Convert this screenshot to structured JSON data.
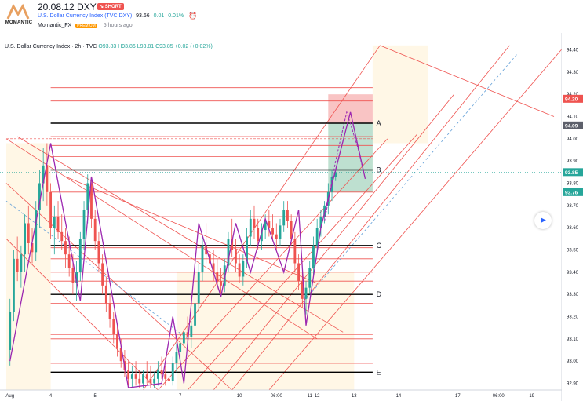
{
  "header": {
    "logo_text": "MOMANTIC",
    "idea_title": "20.08.12 DXY",
    "badge": "↘ SHORT",
    "symbol_name": "U.S. Dollar Currency Index (TVC:DXY)",
    "symbol_price": "93.66",
    "symbol_change": "0.01",
    "symbol_change_pct": "0.01%",
    "author": "Momantic_FX",
    "author_badge": "PREMIUM",
    "published": "5 hours ago",
    "alarm_icon": "alarm-clock-icon"
  },
  "legend": {
    "title": "U.S. Dollar Currency Index · 2h · TVC",
    "ohlc": "O93.83  H93.86  L93.81  C93.85  +0.02 (+0.02%)"
  },
  "colors": {
    "up": "#26a69a",
    "down": "#ef5350",
    "channel": "#ef5350",
    "zigzag": "#9c27b0",
    "dashed": "#64a0d8",
    "zone": "#fff3dc"
  },
  "chart_data": {
    "type": "candlestick",
    "title": "U.S. Dollar Currency Index · 2h · TVC",
    "xlabel": "",
    "ylabel": "",
    "y_ticks": [
      "94.40",
      "94.30",
      "94.20",
      "94.10",
      "94.00",
      "93.90",
      "93.80",
      "93.70",
      "93.60",
      "93.50",
      "93.40",
      "93.30",
      "93.20",
      "93.10",
      "93.00",
      "92.90"
    ],
    "ylim": [
      92.87,
      94.43
    ],
    "x_ticks": [
      {
        "label": "Aug",
        "idx": 0
      },
      {
        "label": "4",
        "idx": 11
      },
      {
        "label": "5",
        "idx": 23
      },
      {
        "label": "7",
        "idx": 46
      },
      {
        "label": "10",
        "idx": 62
      },
      {
        "label": "06:00",
        "idx": 72
      },
      {
        "label": "11",
        "idx": 81
      },
      {
        "label": "12",
        "idx": 83
      },
      {
        "label": "13",
        "idx": 93
      },
      {
        "label": "14",
        "idx": 105
      },
      {
        "label": "17",
        "idx": 121
      },
      {
        "label": "06:00",
        "idx": 132
      },
      {
        "label": "19",
        "idx": 141
      }
    ],
    "x_range": [
      -1,
      147
    ],
    "candles": [
      [
        93.05,
        93.28,
        92.98,
        93.22
      ],
      [
        93.22,
        93.5,
        93.18,
        93.46
      ],
      [
        93.46,
        93.56,
        93.36,
        93.4
      ],
      [
        93.4,
        93.52,
        93.33,
        93.48
      ],
      [
        93.48,
        93.66,
        93.4,
        93.62
      ],
      [
        93.62,
        93.7,
        93.48,
        93.53
      ],
      [
        93.53,
        93.6,
        93.44,
        93.49
      ],
      [
        93.49,
        93.72,
        93.45,
        93.68
      ],
      [
        93.68,
        93.86,
        93.6,
        93.8
      ],
      [
        93.8,
        93.96,
        93.72,
        93.88
      ],
      [
        93.88,
        93.98,
        93.7,
        93.76
      ],
      [
        93.76,
        93.8,
        93.55,
        93.6
      ],
      [
        93.6,
        93.7,
        93.48,
        93.65
      ],
      [
        93.65,
        93.72,
        93.55,
        93.58
      ],
      [
        93.58,
        93.66,
        93.5,
        93.54
      ],
      [
        93.54,
        93.6,
        93.42,
        93.48
      ],
      [
        93.48,
        93.56,
        93.38,
        93.42
      ],
      [
        93.42,
        93.48,
        93.3,
        93.35
      ],
      [
        93.35,
        93.45,
        93.27,
        93.4
      ],
      [
        93.4,
        93.58,
        93.36,
        93.55
      ],
      [
        93.55,
        93.72,
        93.5,
        93.68
      ],
      [
        93.68,
        93.84,
        93.62,
        93.8
      ],
      [
        93.8,
        93.83,
        93.6,
        93.64
      ],
      [
        93.64,
        93.68,
        93.5,
        93.54
      ],
      [
        93.54,
        93.58,
        93.4,
        93.44
      ],
      [
        93.44,
        93.48,
        93.3,
        93.34
      ],
      [
        93.34,
        93.38,
        93.22,
        93.26
      ],
      [
        93.26,
        93.3,
        93.15,
        93.19
      ],
      [
        93.19,
        93.22,
        93.08,
        93.12
      ],
      [
        93.12,
        93.16,
        93.02,
        93.06
      ],
      [
        93.06,
        93.1,
        92.97,
        93.0
      ],
      [
        93.0,
        93.05,
        92.93,
        92.96
      ],
      [
        92.96,
        93.0,
        92.89,
        92.92
      ],
      [
        92.92,
        92.98,
        92.88,
        92.94
      ],
      [
        92.94,
        93.0,
        92.89,
        92.92
      ],
      [
        92.92,
        92.96,
        92.88,
        92.9
      ],
      [
        92.9,
        92.96,
        92.88,
        92.94
      ],
      [
        92.94,
        93.0,
        92.9,
        92.92
      ],
      [
        92.92,
        92.98,
        92.88,
        92.9
      ],
      [
        92.9,
        92.95,
        92.88,
        92.92
      ],
      [
        92.92,
        93.0,
        92.89,
        92.96
      ],
      [
        92.96,
        93.02,
        92.92,
        92.94
      ],
      [
        92.94,
        92.98,
        92.89,
        92.92
      ],
      [
        92.92,
        92.96,
        92.88,
        92.91
      ],
      [
        92.91,
        93.02,
        92.89,
        92.99
      ],
      [
        92.99,
        93.08,
        92.95,
        93.04
      ],
      [
        93.04,
        93.12,
        93.0,
        93.08
      ],
      [
        93.08,
        93.16,
        93.03,
        93.13
      ],
      [
        93.13,
        93.2,
        93.08,
        93.11
      ],
      [
        93.11,
        93.18,
        93.06,
        93.16
      ],
      [
        93.16,
        93.3,
        93.12,
        93.26
      ],
      [
        93.26,
        93.44,
        93.22,
        93.4
      ],
      [
        93.4,
        93.56,
        93.36,
        93.52
      ],
      [
        93.52,
        93.62,
        93.44,
        93.48
      ],
      [
        93.48,
        93.55,
        93.4,
        93.44
      ],
      [
        93.44,
        93.5,
        93.36,
        93.4
      ],
      [
        93.4,
        93.46,
        93.32,
        93.36
      ],
      [
        93.36,
        93.42,
        93.29,
        93.34
      ],
      [
        93.34,
        93.46,
        93.31,
        93.43
      ],
      [
        93.43,
        93.58,
        93.4,
        93.55
      ],
      [
        93.55,
        93.64,
        93.47,
        93.5
      ],
      [
        93.5,
        93.55,
        93.4,
        93.44
      ],
      [
        93.44,
        93.48,
        93.35,
        93.38
      ],
      [
        93.38,
        93.48,
        93.34,
        93.45
      ],
      [
        93.45,
        93.6,
        93.42,
        93.56
      ],
      [
        93.56,
        93.68,
        93.52,
        93.64
      ],
      [
        93.64,
        93.7,
        93.55,
        93.6
      ],
      [
        93.6,
        93.64,
        93.5,
        93.54
      ],
      [
        93.54,
        93.62,
        93.5,
        93.59
      ],
      [
        93.59,
        93.66,
        93.55,
        93.63
      ],
      [
        93.63,
        93.68,
        93.56,
        93.6
      ],
      [
        93.6,
        93.66,
        93.54,
        93.57
      ],
      [
        93.57,
        93.62,
        93.5,
        93.55
      ],
      [
        93.55,
        93.64,
        93.52,
        93.61
      ],
      [
        93.61,
        93.72,
        93.58,
        93.68
      ],
      [
        93.68,
        93.72,
        93.6,
        93.63
      ],
      [
        93.63,
        93.66,
        93.52,
        93.55
      ],
      [
        93.55,
        93.58,
        93.4,
        93.44
      ],
      [
        93.44,
        93.48,
        93.32,
        93.36
      ],
      [
        93.36,
        93.4,
        93.24,
        93.28
      ],
      [
        93.28,
        93.36,
        93.21,
        93.33
      ],
      [
        93.33,
        93.45,
        93.3,
        93.42
      ],
      [
        93.42,
        93.56,
        93.38,
        93.52
      ],
      [
        93.52,
        93.64,
        93.48,
        93.6
      ],
      [
        93.6,
        93.68,
        93.56,
        93.65
      ],
      [
        93.65,
        93.72,
        93.62,
        93.7
      ],
      [
        93.7,
        93.8,
        93.66,
        93.76
      ],
      [
        93.76,
        93.86,
        93.72,
        93.83
      ],
      [
        93.83,
        93.86,
        93.81,
        93.85
      ]
    ],
    "levels": [
      {
        "label": "A",
        "price": 94.07,
        "color": "#000000"
      },
      {
        "label": "B",
        "price": 93.86,
        "color": "#000000"
      },
      {
        "label": "C",
        "price": 93.52,
        "color": "#000000"
      },
      {
        "label": "D",
        "price": 93.3,
        "color": "#000000"
      },
      {
        "label": "E",
        "price": 92.95,
        "color": "#000000"
      }
    ],
    "red_levels": [
      94.23,
      94.17,
      94.01,
      93.97,
      93.92,
      93.76,
      93.65,
      93.51,
      93.46,
      93.4,
      93.36,
      93.26,
      93.12,
      93.1,
      92.99
    ],
    "price_labels": [
      {
        "text": "94.20",
        "price": 94.18,
        "color": "#ef5350"
      },
      {
        "text": "94.09",
        "price": 94.06,
        "color": "#5d606b"
      },
      {
        "text": "93.85",
        "price": 93.85,
        "color": "#26a69a"
      },
      {
        "text": "93.76",
        "price": 93.76,
        "color": "#26a69a"
      }
    ],
    "zigzag": [
      [
        0,
        93.0
      ],
      [
        11,
        93.98
      ],
      [
        19,
        93.27
      ],
      [
        22,
        93.83
      ],
      [
        32,
        92.88
      ],
      [
        41,
        92.9
      ],
      [
        44,
        93.2
      ],
      [
        47,
        92.9
      ],
      [
        51,
        93.62
      ],
      [
        57,
        93.29
      ],
      [
        61,
        93.62
      ],
      [
        65,
        93.4
      ],
      [
        69,
        93.64
      ],
      [
        74,
        93.4
      ],
      [
        78,
        93.68
      ],
      [
        80,
        93.16
      ],
      [
        84,
        93.6
      ],
      [
        92,
        94.12
      ],
      [
        96,
        93.82
      ]
    ],
    "projection": [
      [
        85,
        93.63
      ],
      [
        88,
        93.9
      ],
      [
        91,
        94.12
      ],
      [
        94,
        93.96
      ],
      [
        96,
        93.82
      ]
    ],
    "long_position": {
      "x0": 86,
      "x1": 98,
      "entry": 93.76,
      "target": 94.07,
      "stop": 94.2
    }
  }
}
